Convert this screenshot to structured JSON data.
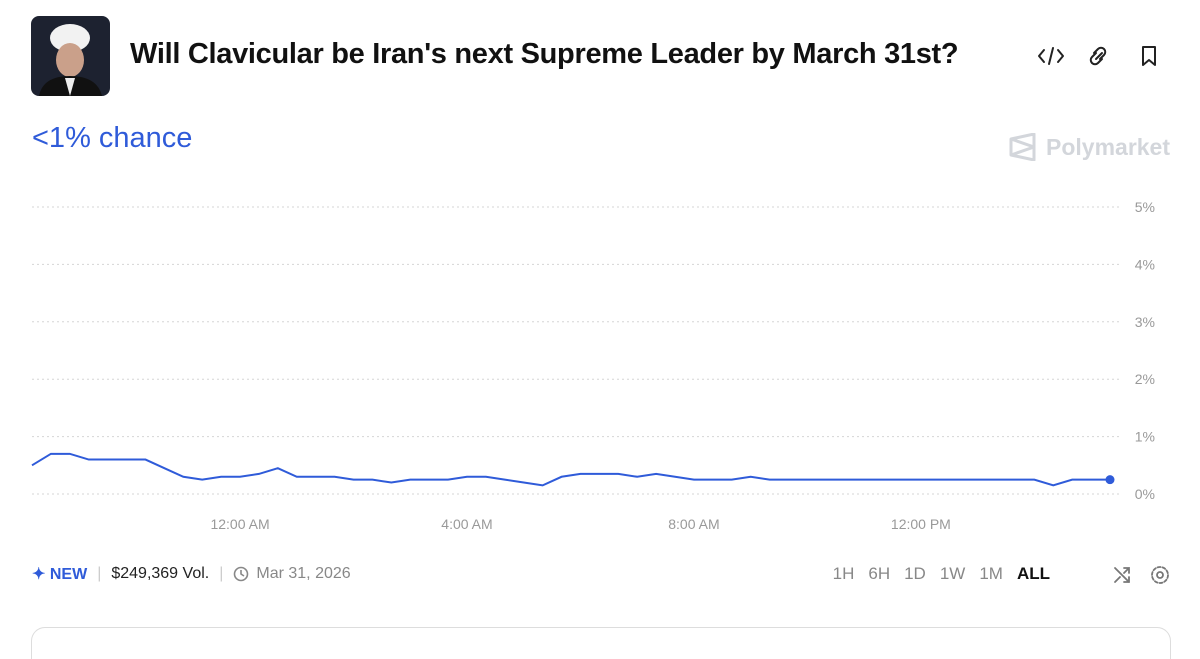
{
  "header": {
    "title": "Will Clavicular be Iran's next Supreme Leader by March 31st?",
    "chance": "<1% chance",
    "brand": "Polymarket"
  },
  "footer": {
    "badge": "NEW",
    "volume": "$249,369 Vol.",
    "date": "Mar 31, 2026",
    "timeframes": [
      "1H",
      "6H",
      "1D",
      "1W",
      "1M",
      "ALL"
    ],
    "active": "ALL"
  },
  "chart_data": {
    "type": "line",
    "color": "#2f5bd9",
    "grid": true,
    "values": [
      0.5,
      0.7,
      0.7,
      0.6,
      0.6,
      0.6,
      0.6,
      0.45,
      0.3,
      0.25,
      0.3,
      0.3,
      0.35,
      0.45,
      0.3,
      0.3,
      0.3,
      0.25,
      0.25,
      0.2,
      0.25,
      0.25,
      0.25,
      0.3,
      0.3,
      0.25,
      0.2,
      0.15,
      0.3,
      0.35,
      0.35,
      0.35,
      0.3,
      0.35,
      0.3,
      0.25,
      0.25,
      0.25,
      0.3,
      0.25,
      0.25,
      0.25,
      0.25,
      0.25,
      0.25,
      0.25,
      0.25,
      0.25,
      0.25,
      0.25,
      0.25,
      0.25,
      0.25,
      0.25,
      0.15,
      0.25,
      0.25,
      0.25
    ],
    "xlim": [
      0,
      57
    ],
    "xticks": [
      {
        "value": 11,
        "label": "12:00 AM"
      },
      {
        "value": 23,
        "label": "4:00 AM"
      },
      {
        "value": 35,
        "label": "8:00 AM"
      },
      {
        "value": 47,
        "label": "12:00 PM"
      }
    ],
    "ylim": [
      0,
      5
    ],
    "yticks": [
      {
        "value": 0,
        "label": "0%"
      },
      {
        "value": 1,
        "label": "1%"
      },
      {
        "value": 2,
        "label": "2%"
      },
      {
        "value": 3,
        "label": "3%"
      },
      {
        "value": 4,
        "label": "4%"
      },
      {
        "value": 5,
        "label": "5%"
      }
    ]
  }
}
